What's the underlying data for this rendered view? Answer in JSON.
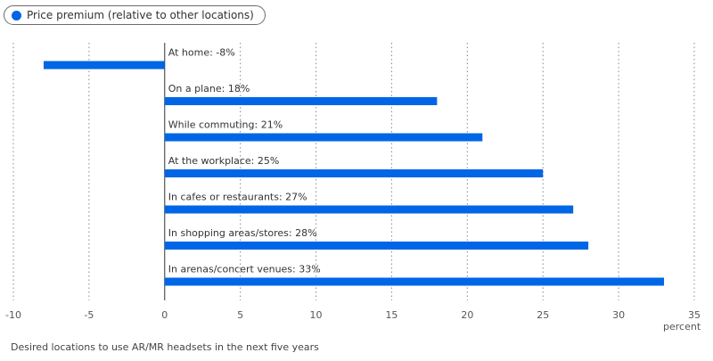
{
  "legend": {
    "label": "Price premium (relative to other locations)",
    "color": "#0066e6"
  },
  "caption": "Desired locations to use AR/MR headsets in the next five years",
  "chart_data": {
    "type": "bar",
    "orientation": "horizontal",
    "xlabel": "percent",
    "xlim": [
      -10,
      35
    ],
    "xticks": [
      -10,
      -5,
      0,
      5,
      10,
      15,
      20,
      25,
      30,
      35
    ],
    "grid": "vertical dotted",
    "legend_position": "top-left",
    "bar_color": "#0066e6",
    "series": [
      {
        "name": "Price premium (relative to other locations)",
        "categories": [
          "At home",
          "On a plane",
          "While commuting",
          "At the workplace",
          "In cafes or restaurants",
          "In shopping areas/stores",
          "In arenas/concert venues"
        ],
        "values": [
          -8,
          18,
          21,
          25,
          27,
          28,
          33
        ]
      }
    ],
    "data_labels": [
      "At home: -8%",
      "On a plane: 18%",
      "While commuting: 21%",
      "At the workplace: 25%",
      "In cafes or restaurants: 27%",
      "In shopping areas/stores: 28%",
      "In arenas/concert venues: 33%"
    ]
  }
}
